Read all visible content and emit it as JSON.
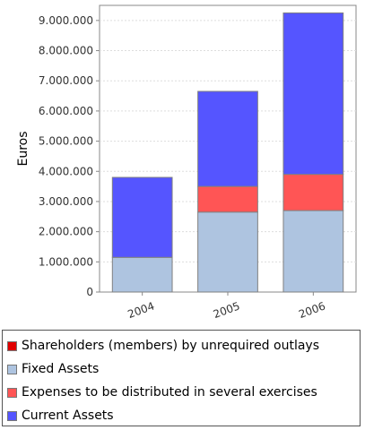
{
  "chart_data": {
    "type": "bar",
    "stacked": true,
    "ylabel": "Euros",
    "xlabel": "",
    "categories": [
      "2004",
      "2005",
      "2006"
    ],
    "ylim": [
      0,
      9500000
    ],
    "yticks": [
      "0",
      "1.000.000",
      "2.000.000",
      "3.000.000",
      "4.000.000",
      "5.000.000",
      "6.000.000",
      "7.000.000",
      "8.000.000",
      "9.000.000"
    ],
    "grid": true,
    "legend_position": "bottom",
    "series": [
      {
        "name": "Shareholders (members) by unrequired outlays",
        "color": "#e00000",
        "values": [
          0,
          0,
          0
        ]
      },
      {
        "name": "Fixed Assets",
        "color": "#aec4e0",
        "values": [
          1150000,
          2650000,
          2700000
        ]
      },
      {
        "name": "Expenses to be distributed in several exercises",
        "color": "#ff5555",
        "values": [
          0,
          850000,
          1200000
        ]
      },
      {
        "name": "Current Assets",
        "color": "#5555ff",
        "values": [
          2650000,
          3150000,
          5350000
        ]
      }
    ]
  }
}
